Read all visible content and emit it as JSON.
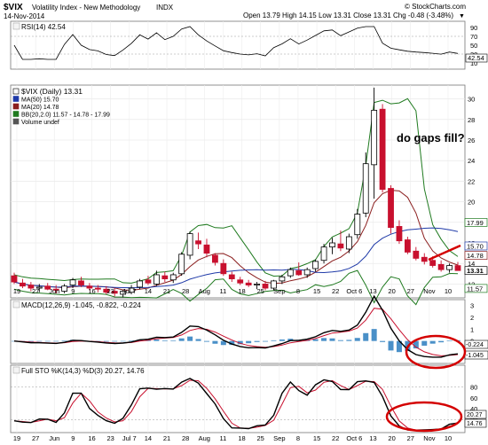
{
  "header": {
    "symbol": "$VIX",
    "name": "Volatility Index - New Methodology",
    "exchange": "INDX",
    "date": "14-Nov-2014",
    "quote": "Open 13.79  High 14.15  Low 13.31  Close 13.31  Chg -0.48 (-3.48%)",
    "quote_arrow": "▼",
    "watermark": "© StockCharts.com"
  },
  "rsi_panel": {
    "label": "RSI(14) 42.54",
    "ticks": [
      "90",
      "70",
      "50",
      "30",
      "10"
    ],
    "last_value": "42.54"
  },
  "price_panel": {
    "legend": [
      "$VIX (Daily) 13.31",
      "MA(50) 15.70",
      "MA(20) 14.78",
      "BB(20,2.0) 11.57 - 14.78 - 17.99",
      "Volume undef"
    ],
    "ticks": [
      "30",
      "28",
      "26",
      "24",
      "22",
      "20",
      "18",
      "16",
      "14",
      "12"
    ],
    "tags": [
      "17.99",
      "15.70",
      "14.78",
      "13.31",
      "11.57"
    ],
    "annotation": "do gaps fill?"
  },
  "macd_panel": {
    "label": "MACD(12,26,9) -1.045, -0.822, -0.224",
    "ticks": [
      "3",
      "2",
      "1",
      "0",
      "-1"
    ],
    "tags": [
      "-0.224",
      "-1.045"
    ]
  },
  "sto_panel": {
    "label": "Full STO %K(14,3) %D(3) 20.27, 14.76",
    "ticks": [
      "80",
      "60",
      "40",
      "20"
    ],
    "tags": [
      "20.27",
      "14.76"
    ]
  },
  "x_axis": {
    "labels": [
      "19",
      "27",
      "Jun",
      "9",
      "16",
      "23",
      "Jul 7",
      "14",
      "21",
      "28",
      "Aug",
      "11",
      "18",
      "25",
      "Sep",
      "8",
      "15",
      "22",
      "Oct 6",
      "13",
      "20",
      "27",
      "Nov",
      "10"
    ]
  },
  "colors": {
    "up": "#000000",
    "down": "#c8102e",
    "ma50": "#1f3aa8",
    "ma20": "#8b1e1e",
    "bb": "#1f7a1f",
    "histogram": "#4a90c8",
    "annotation": "#d40000"
  },
  "chart_data": {
    "type": "candlestick",
    "x": [
      "2014-05-19",
      "2014-05-23",
      "2014-05-27",
      "2014-05-29",
      "2014-06-02",
      "2014-06-05",
      "2014-06-09",
      "2014-06-12",
      "2014-06-16",
      "2014-06-19",
      "2014-06-23",
      "2014-06-26",
      "2014-06-30",
      "2014-07-03",
      "2014-07-07",
      "2014-07-10",
      "2014-07-14",
      "2014-07-17",
      "2014-07-21",
      "2014-07-24",
      "2014-07-28",
      "2014-07-31",
      "2014-08-04",
      "2014-08-07",
      "2014-08-11",
      "2014-08-14",
      "2014-08-18",
      "2014-08-21",
      "2014-08-25",
      "2014-08-28",
      "2014-09-02",
      "2014-09-05",
      "2014-09-08",
      "2014-09-11",
      "2014-09-15",
      "2014-09-18",
      "2014-09-22",
      "2014-09-25",
      "2014-09-29",
      "2014-10-02",
      "2014-10-06",
      "2014-10-09",
      "2014-10-13",
      "2014-10-15",
      "2014-10-16",
      "2014-10-20",
      "2014-10-23",
      "2014-10-27",
      "2014-10-30",
      "2014-11-03",
      "2014-11-06",
      "2014-11-10",
      "2014-11-12",
      "2014-11-14"
    ],
    "open": [
      12.8,
      12.1,
      11.9,
      11.6,
      11.8,
      11.5,
      11.3,
      11.9,
      12.3,
      11.8,
      11.6,
      11.5,
      11.3,
      11.0,
      11.2,
      11.7,
      12.4,
      12.0,
      12.8,
      12.4,
      13.0,
      14.8,
      16.2,
      15.8,
      14.8,
      14.0,
      12.9,
      12.4,
      12.1,
      11.9,
      12.0,
      11.6,
      12.3,
      12.8,
      13.3,
      12.9,
      13.5,
      14.3,
      15.6,
      15.9,
      15.4,
      16.8,
      18.9,
      23.6,
      29.0,
      21.3,
      17.6,
      16.3,
      15.2,
      14.6,
      14.3,
      13.9,
      13.4,
      13.79
    ],
    "high": [
      13.1,
      12.5,
      12.2,
      12.0,
      12.1,
      11.9,
      12.0,
      12.6,
      12.7,
      12.1,
      11.9,
      11.8,
      11.6,
      11.4,
      11.9,
      12.5,
      12.8,
      13.3,
      13.2,
      13.1,
      15.1,
      17.1,
      17.0,
      16.4,
      15.0,
      14.4,
      13.2,
      12.7,
      12.4,
      12.2,
      12.3,
      12.4,
      12.9,
      13.6,
      14.1,
      13.6,
      14.4,
      15.9,
      16.5,
      17.2,
      16.9,
      19.3,
      24.8,
      31.1,
      29.5,
      21.6,
      18.2,
      16.6,
      15.6,
      15.0,
      14.7,
      14.3,
      14.0,
      14.15
    ],
    "low": [
      12.0,
      11.6,
      11.3,
      11.2,
      11.4,
      11.1,
      11.1,
      11.6,
      11.7,
      11.4,
      11.2,
      11.0,
      10.8,
      10.7,
      11.0,
      11.5,
      11.9,
      11.8,
      12.2,
      12.1,
      12.8,
      14.4,
      15.4,
      14.6,
      13.8,
      12.8,
      12.2,
      11.9,
      11.7,
      11.5,
      11.4,
      11.4,
      12.0,
      12.6,
      12.8,
      12.6,
      13.2,
      14.0,
      14.9,
      15.2,
      15.0,
      16.4,
      18.5,
      20.3,
      20.9,
      16.9,
      15.9,
      14.9,
      14.3,
      13.9,
      13.6,
      13.2,
      13.1,
      13.31
    ],
    "close": [
      12.2,
      11.8,
      11.6,
      11.7,
      11.5,
      11.4,
      11.8,
      12.4,
      11.9,
      11.6,
      11.5,
      11.2,
      11.1,
      11.3,
      11.6,
      12.3,
      12.1,
      12.9,
      12.5,
      12.9,
      14.9,
      16.9,
      15.9,
      15.0,
      14.1,
      13.0,
      12.5,
      12.1,
      11.9,
      12.0,
      11.6,
      12.3,
      12.7,
      13.4,
      12.9,
      13.4,
      14.2,
      15.6,
      16.0,
      15.5,
      16.6,
      18.8,
      23.7,
      28.9,
      21.2,
      17.5,
      16.2,
      15.1,
      14.5,
      14.2,
      13.8,
      13.4,
      13.8,
      13.31
    ],
    "y_range": [
      11,
      31
    ]
  }
}
